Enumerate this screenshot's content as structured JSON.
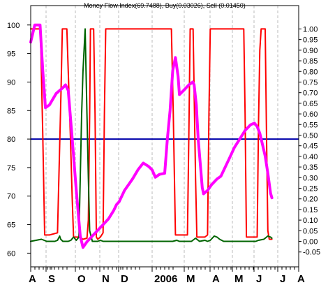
{
  "chart_data": {
    "type": "line",
    "title": "Money Flow Index(69.7488), Buy(0.03026), Sell (0.01450)",
    "x_tick_labels": [
      "A",
      "S",
      "O",
      "N",
      "D",
      "2006",
      "M",
      "A",
      "M",
      "J",
      "J",
      "A"
    ],
    "left_axis": {
      "ylim": [
        57.6,
        103.4
      ],
      "ticks": [
        60,
        65,
        70,
        75,
        80,
        85,
        90,
        95,
        100
      ]
    },
    "right_axis": {
      "ylim": [
        -0.12,
        1.11
      ],
      "ticks": [
        -0.05,
        0.0,
        0.05,
        0.1,
        0.15,
        0.2,
        0.25,
        0.3,
        0.35,
        0.4,
        0.45,
        0.5,
        0.55,
        0.6,
        0.65,
        0.7,
        0.75,
        0.8,
        0.85,
        0.9,
        0.95,
        1.0
      ],
      "tick_labels": [
        "-0.05",
        "0.00",
        "0.05",
        "0.10",
        "0.15",
        "0.20",
        "0.25",
        "0.30",
        "0.35",
        "0.40",
        "0.45",
        "0.50",
        "0.55",
        "0.60",
        "0.65",
        "0.70",
        "0.75",
        "0.80",
        "0.85",
        "0.90",
        "0.95",
        "1.00"
      ]
    },
    "x_range": [
      0,
      100
    ],
    "reference_line": {
      "value": 80,
      "color": "#0000aa"
    },
    "series": [
      {
        "color": "#ff00ff",
        "axis": "left",
        "points": [
          [
            0,
            97
          ],
          [
            1.5,
            100
          ],
          [
            3.5,
            100
          ],
          [
            4.5,
            92
          ],
          [
            5.5,
            85.5
          ],
          [
            7,
            86
          ],
          [
            9.5,
            88
          ],
          [
            12,
            89
          ],
          [
            13,
            89.5
          ],
          [
            14,
            88.5
          ],
          [
            15.5,
            80
          ],
          [
            17,
            71
          ],
          [
            18.5,
            63
          ],
          [
            19.5,
            61
          ],
          [
            21,
            62
          ],
          [
            23,
            63
          ],
          [
            25,
            64
          ],
          [
            27,
            65
          ],
          [
            29,
            66
          ],
          [
            31,
            67.5
          ],
          [
            32,
            68.5
          ],
          [
            33,
            69
          ],
          [
            34,
            70
          ],
          [
            35,
            71
          ],
          [
            36.5,
            72
          ],
          [
            38,
            73
          ],
          [
            39,
            73.8
          ],
          [
            40,
            74.6
          ],
          [
            41,
            75.2
          ],
          [
            42,
            75.8
          ],
          [
            43,
            75.5
          ],
          [
            44,
            75.2
          ],
          [
            45.3,
            74.6
          ],
          [
            46.5,
            73.3
          ],
          [
            48,
            73.8
          ],
          [
            50,
            74
          ],
          [
            51,
            80
          ],
          [
            52,
            85
          ],
          [
            53,
            92
          ],
          [
            54,
            94.3
          ],
          [
            55,
            91
          ],
          [
            55.5,
            87.8
          ],
          [
            57,
            88.5
          ],
          [
            59,
            89.5
          ],
          [
            60.5,
            90
          ],
          [
            61,
            89.5
          ],
          [
            61.8,
            86
          ],
          [
            62.5,
            80
          ],
          [
            63.5,
            74.5
          ],
          [
            64,
            71.5
          ],
          [
            64.5,
            70.4
          ],
          [
            66,
            71
          ],
          [
            67.5,
            72
          ],
          [
            69.5,
            73
          ],
          [
            71,
            73.5
          ],
          [
            72.5,
            75
          ],
          [
            74,
            76.5
          ],
          [
            76,
            78.5
          ],
          [
            78,
            80
          ],
          [
            80,
            81.5
          ],
          [
            82,
            82.5
          ],
          [
            83.5,
            82.8
          ],
          [
            84.5,
            82.2
          ],
          [
            85.5,
            81
          ],
          [
            86.5,
            79
          ],
          [
            87.5,
            77
          ],
          [
            88.5,
            74
          ],
          [
            89.5,
            70.5
          ],
          [
            90,
            69.7
          ]
        ]
      },
      {
        "color": "#ff0000",
        "axis": "right",
        "points": [
          [
            0,
            1.0
          ],
          [
            3.5,
            1.0
          ],
          [
            3.8,
            0.9
          ],
          [
            4.5,
            0.5
          ],
          [
            5.2,
            0.03
          ],
          [
            6,
            0.03
          ],
          [
            7,
            0.03
          ],
          [
            10,
            0.04
          ],
          [
            11.3,
            0.7
          ],
          [
            11.8,
            1.0
          ],
          [
            13.5,
            1.0
          ],
          [
            14,
            0.8
          ],
          [
            14.8,
            0.5
          ],
          [
            15.5,
            0.2
          ],
          [
            16,
            0.02
          ],
          [
            18,
            0.02
          ],
          [
            19.5,
            0.01
          ],
          [
            21,
            0.015
          ],
          [
            21.5,
            0.1
          ],
          [
            22,
            0.6
          ],
          [
            22.3,
            1.0
          ],
          [
            23.5,
            1.0
          ],
          [
            24,
            0.6
          ],
          [
            24.5,
            0.02
          ],
          [
            25,
            0.01
          ],
          [
            26,
            0.02
          ],
          [
            27,
            0.04
          ],
          [
            27.5,
            0.6
          ],
          [
            28,
            1.0
          ],
          [
            52,
            1.0
          ],
          [
            52.5,
            1.0
          ],
          [
            53.2,
            0.6
          ],
          [
            54,
            0.03
          ],
          [
            57,
            0.03
          ],
          [
            58.5,
            0.03
          ],
          [
            59,
            0.5
          ],
          [
            59.5,
            1.0
          ],
          [
            60.6,
            1.0
          ],
          [
            61,
            0.7
          ],
          [
            61.5,
            0.3
          ],
          [
            62,
            0.02
          ],
          [
            65,
            0.02
          ],
          [
            66,
            0.03
          ],
          [
            66.5,
            0.6
          ],
          [
            67,
            1.0
          ],
          [
            79.5,
            1.0
          ],
          [
            80,
            0.6
          ],
          [
            80.5,
            0.02
          ],
          [
            82,
            0.02
          ],
          [
            84.5,
            0.02
          ],
          [
            85,
            0.55
          ],
          [
            85.5,
            0.9
          ],
          [
            86,
            1.0
          ],
          [
            87.5,
            1.0
          ],
          [
            88,
            0.5
          ],
          [
            88.5,
            0.05
          ],
          [
            89,
            0.01
          ],
          [
            90,
            0.01
          ]
        ]
      },
      {
        "color": "#006400",
        "axis": "right",
        "points": [
          [
            0,
            0.0
          ],
          [
            4,
            0.01
          ],
          [
            5,
            0.005
          ],
          [
            6,
            0.0
          ],
          [
            9,
            0.0
          ],
          [
            10,
            0.005
          ],
          [
            10.8,
            0.025
          ],
          [
            11.2,
            0.01
          ],
          [
            12,
            0.0
          ],
          [
            14,
            0.0
          ],
          [
            15,
            0.005
          ],
          [
            16,
            0.02
          ],
          [
            17,
            0.005
          ],
          [
            18,
            0.02
          ],
          [
            18.5,
            0.3
          ],
          [
            19,
            0.6
          ],
          [
            19.5,
            0.8
          ],
          [
            20.3,
            1.0
          ],
          [
            21,
            0.6
          ],
          [
            21.5,
            0.3
          ],
          [
            22,
            0.05
          ],
          [
            23,
            0.0
          ],
          [
            25,
            0.0
          ],
          [
            26,
            0.005
          ],
          [
            27,
            0.0
          ],
          [
            53,
            0.0
          ],
          [
            54.5,
            0.005
          ],
          [
            55.5,
            0.0
          ],
          [
            60,
            0.0
          ],
          [
            61.5,
            0.015
          ],
          [
            63,
            0.0
          ],
          [
            65,
            0.005
          ],
          [
            66,
            0.0
          ],
          [
            67,
            0.005
          ],
          [
            68.5,
            0.025
          ],
          [
            69.5,
            0.02
          ],
          [
            70.5,
            0.01
          ],
          [
            72,
            0.0
          ],
          [
            84,
            0.0
          ],
          [
            85,
            0.005
          ],
          [
            87,
            0.01
          ],
          [
            88.5,
            0.025
          ],
          [
            89.5,
            0.02
          ],
          [
            90,
            0.015
          ]
        ]
      }
    ]
  }
}
